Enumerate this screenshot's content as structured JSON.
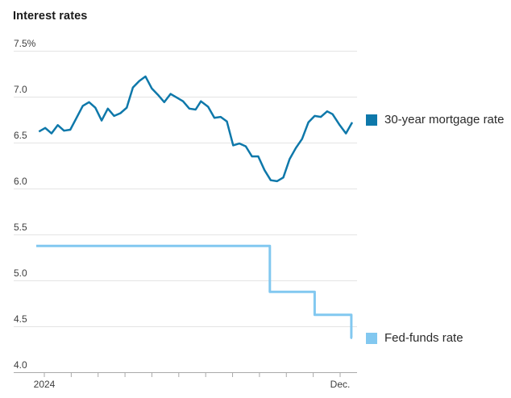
{
  "title": "Interest rates",
  "colors": {
    "mortgage_line": "#0e78aa",
    "fed_funds_line": "#82c8f0",
    "gridline": "#e4e4e4",
    "axis_line": "#a9a9a9",
    "axis_label": "#3d3d3d",
    "title_text": "#1a1a1a",
    "legend_text": "#2a2a2a"
  },
  "legend": {
    "items": [
      {
        "label": "30-year mortgage rate",
        "color": "#0e78aa"
      },
      {
        "label": "Fed-funds rate",
        "color": "#82c8f0"
      }
    ]
  },
  "chart_data": {
    "type": "line",
    "title": "Interest rates",
    "x_axis": {
      "unit": "date",
      "year": 2024,
      "month_tick_count": 12,
      "first_tick_label": "2024",
      "last_tick_label": "Dec.",
      "grid": false
    },
    "y_axis": {
      "unit": "percent",
      "range": [
        4.0,
        7.5
      ],
      "tick_values": [
        7.5,
        7.0,
        6.5,
        6.0,
        5.5,
        5.0,
        4.5,
        4.0
      ],
      "tick_labels": [
        "7.5%",
        "7.0",
        "6.5",
        "6.0",
        "5.5",
        "5.0",
        "4.5",
        "4.0"
      ],
      "grid": true
    },
    "legend_position": "right-of-line-ends",
    "series": [
      {
        "name": "30-year mortgage rate",
        "color": "#0e78aa",
        "style": "line",
        "points": [
          [
            "2024-01-04",
            6.62
          ],
          [
            "2024-01-11",
            6.66
          ],
          [
            "2024-01-18",
            6.6
          ],
          [
            "2024-01-25",
            6.69
          ],
          [
            "2024-02-01",
            6.63
          ],
          [
            "2024-02-08",
            6.64
          ],
          [
            "2024-02-15",
            6.77
          ],
          [
            "2024-02-22",
            6.9
          ],
          [
            "2024-02-29",
            6.94
          ],
          [
            "2024-03-07",
            6.88
          ],
          [
            "2024-03-14",
            6.74
          ],
          [
            "2024-03-21",
            6.87
          ],
          [
            "2024-03-28",
            6.79
          ],
          [
            "2024-04-04",
            6.82
          ],
          [
            "2024-04-11",
            6.88
          ],
          [
            "2024-04-18",
            7.1
          ],
          [
            "2024-04-25",
            7.17
          ],
          [
            "2024-05-02",
            7.22
          ],
          [
            "2024-05-09",
            7.09
          ],
          [
            "2024-05-16",
            7.02
          ],
          [
            "2024-05-23",
            6.94
          ],
          [
            "2024-05-30",
            7.03
          ],
          [
            "2024-06-06",
            6.99
          ],
          [
            "2024-06-13",
            6.95
          ],
          [
            "2024-06-20",
            6.87
          ],
          [
            "2024-06-27",
            6.86
          ],
          [
            "2024-07-03",
            6.95
          ],
          [
            "2024-07-11",
            6.89
          ],
          [
            "2024-07-18",
            6.77
          ],
          [
            "2024-07-25",
            6.78
          ],
          [
            "2024-08-01",
            6.73
          ],
          [
            "2024-08-08",
            6.47
          ],
          [
            "2024-08-15",
            6.49
          ],
          [
            "2024-08-22",
            6.46
          ],
          [
            "2024-08-29",
            6.35
          ],
          [
            "2024-09-05",
            6.35
          ],
          [
            "2024-09-12",
            6.2
          ],
          [
            "2024-09-19",
            6.09
          ],
          [
            "2024-09-26",
            6.08
          ],
          [
            "2024-10-03",
            6.12
          ],
          [
            "2024-10-10",
            6.32
          ],
          [
            "2024-10-17",
            6.44
          ],
          [
            "2024-10-24",
            6.54
          ],
          [
            "2024-10-31",
            6.72
          ],
          [
            "2024-11-07",
            6.79
          ],
          [
            "2024-11-14",
            6.78
          ],
          [
            "2024-11-21",
            6.84
          ],
          [
            "2024-11-27",
            6.81
          ],
          [
            "2024-12-05",
            6.69
          ],
          [
            "2024-12-12",
            6.6
          ],
          [
            "2024-12-19",
            6.72
          ]
        ]
      },
      {
        "name": "Fed-funds rate",
        "color": "#82c8f0",
        "style": "step-line",
        "points": [
          [
            "2024-01-01",
            5.375
          ],
          [
            "2024-09-18",
            5.375
          ],
          [
            "2024-09-18",
            4.875
          ],
          [
            "2024-11-07",
            4.875
          ],
          [
            "2024-11-07",
            4.625
          ],
          [
            "2024-12-18",
            4.625
          ],
          [
            "2024-12-18",
            4.375
          ],
          [
            "2024-12-19",
            4.375
          ]
        ]
      }
    ]
  }
}
